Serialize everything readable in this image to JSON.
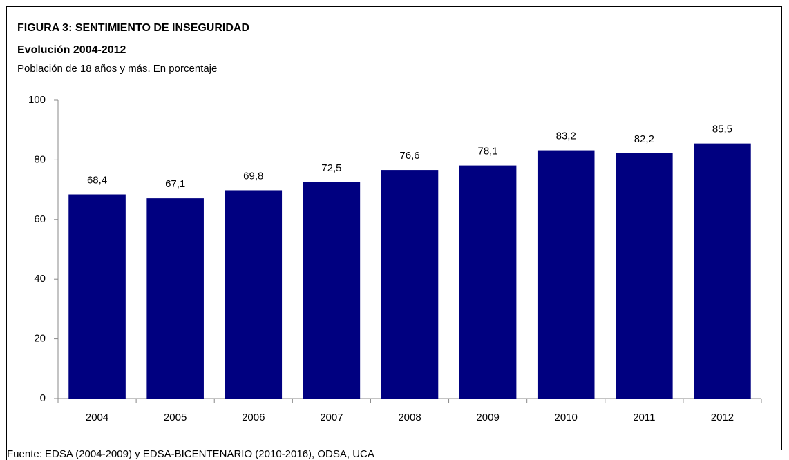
{
  "chart_data": {
    "type": "bar",
    "title": "FIGURA 3: SENTIMIENTO DE INSEGURIDAD",
    "subtitle": "Evolución 2004-2012",
    "note": "Población de 18 años y más. En porcentaje",
    "source": "Fuente: EDSA (2004-2009) y EDSA-BICENTENARIO (2010-2016), ODSA, UCA",
    "categories": [
      "2004",
      "2005",
      "2006",
      "2007",
      "2008",
      "2009",
      "2010",
      "2011",
      "2012"
    ],
    "values": [
      68.4,
      67.1,
      69.8,
      72.5,
      76.6,
      78.1,
      83.2,
      82.2,
      85.5
    ],
    "value_labels": [
      "68,4",
      "67,1",
      "69,8",
      "72,5",
      "76,6",
      "78,1",
      "83,2",
      "82,2",
      "85,5"
    ],
    "color": "#000080",
    "ylim": [
      0,
      100
    ],
    "yticks": [
      0,
      20,
      40,
      60,
      80,
      100
    ],
    "grid": false
  }
}
